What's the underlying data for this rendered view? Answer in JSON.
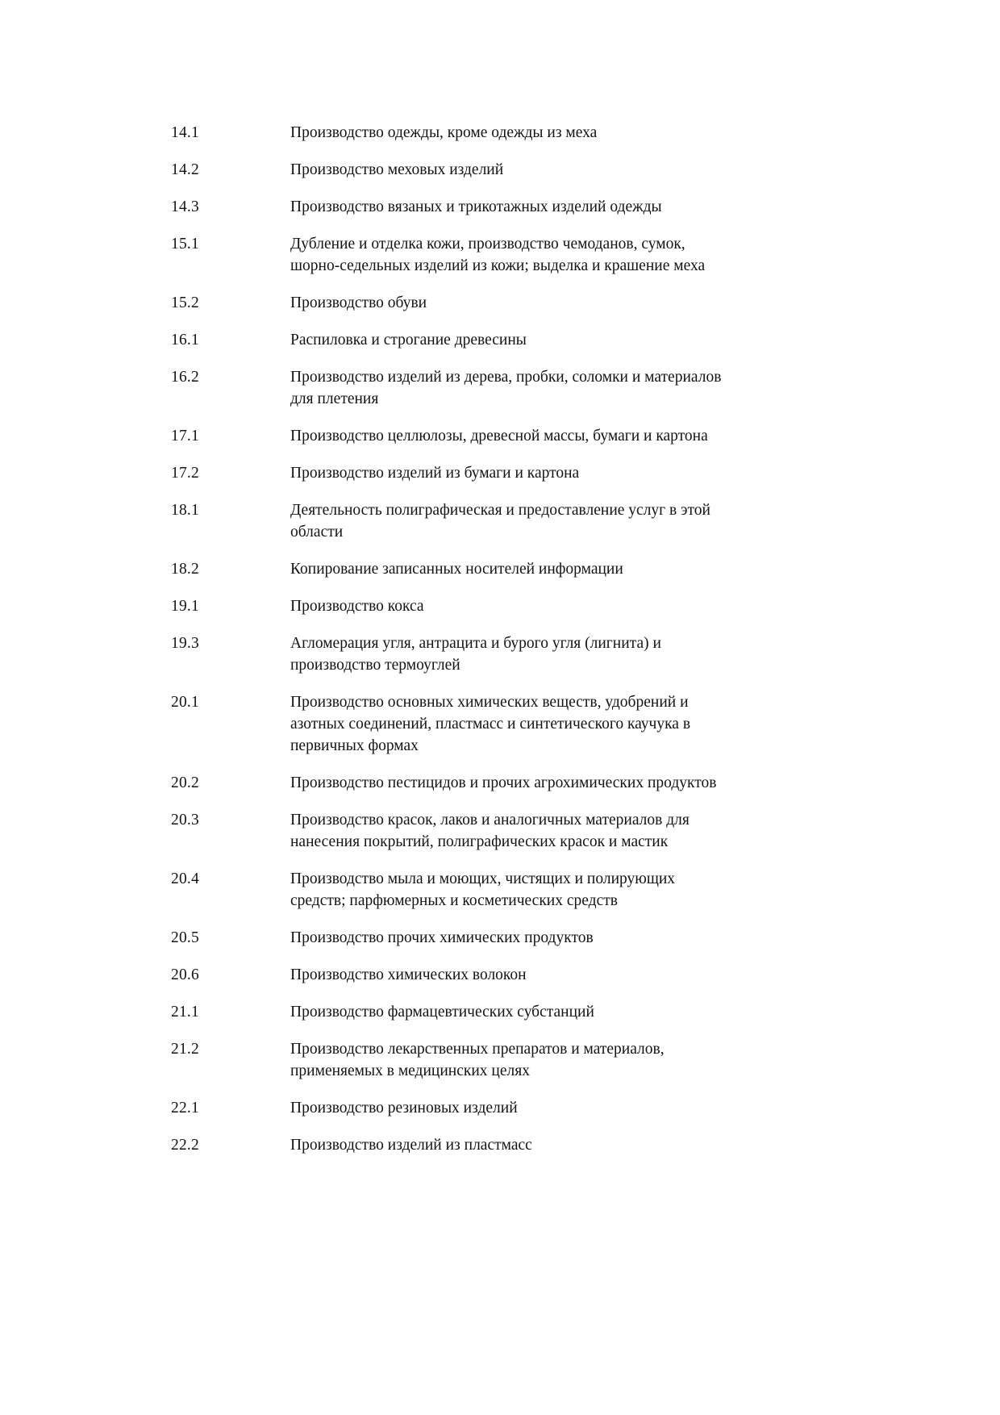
{
  "document": {
    "language": "ru",
    "text_color": "#141414",
    "background_color": "#ffffff",
    "rows": [
      {
        "code": "14.1",
        "text": "Производство одежды, кроме одежды из меха"
      },
      {
        "code": "14.2",
        "text": "Производство меховых изделий"
      },
      {
        "code": "14.3",
        "text": "Производство вязаных и трикотажных изделий одежды"
      },
      {
        "code": "15.1",
        "text": "Дубление и отделка кожи, производство чемоданов, сумок,\nшорно-седельных изделий из кожи; выделка и крашение меха"
      },
      {
        "code": "15.2",
        "text": "Производство обуви"
      },
      {
        "code": "16.1",
        "text": "Распиловка и строгание древесины"
      },
      {
        "code": "16.2",
        "text": "Производство изделий из дерева, пробки, соломки и материалов\nдля плетения"
      },
      {
        "code": "17.1",
        "text": "Производство целлюлозы, древесной массы, бумаги и картона"
      },
      {
        "code": "17.2",
        "text": "Производство изделий из бумаги и картона"
      },
      {
        "code": "18.1",
        "text": "Деятельность полиграфическая и предоставление услуг в этой\nобласти"
      },
      {
        "code": "18.2",
        "text": "Копирование записанных носителей информации"
      },
      {
        "code": "19.1",
        "text": "Производство кокса"
      },
      {
        "code": "19.3",
        "text": "Агломерация угля, антрацита и бурого угля (лигнита) и\nпроизводство термоуглей"
      },
      {
        "code": "20.1",
        "text": "Производство основных химических веществ, удобрений и\nазотных соединений, пластмасс и синтетического каучука в\nпервичных формах"
      },
      {
        "code": "20.2",
        "text": "Производство пестицидов и прочих агрохимических продуктов"
      },
      {
        "code": "20.3",
        "text": "Производство красок, лаков и аналогичных материалов для\nнанесения покрытий, полиграфических красок и мастик"
      },
      {
        "code": "20.4",
        "text": "Производство мыла и моющих, чистящих и полирующих\nсредств; парфюмерных и косметических средств"
      },
      {
        "code": "20.5",
        "text": "Производство прочих химических продуктов"
      },
      {
        "code": "20.6",
        "text": "Производство химических волокон"
      },
      {
        "code": "21.1",
        "text": "Производство фармацевтических субстанций"
      },
      {
        "code": "21.2",
        "text": "Производство лекарственных препаратов и материалов,\nприменяемых в медицинских целях"
      },
      {
        "code": "22.1",
        "text": "Производство резиновых изделий"
      },
      {
        "code": "22.2",
        "text": "Производство изделий из пластмасс"
      }
    ]
  }
}
